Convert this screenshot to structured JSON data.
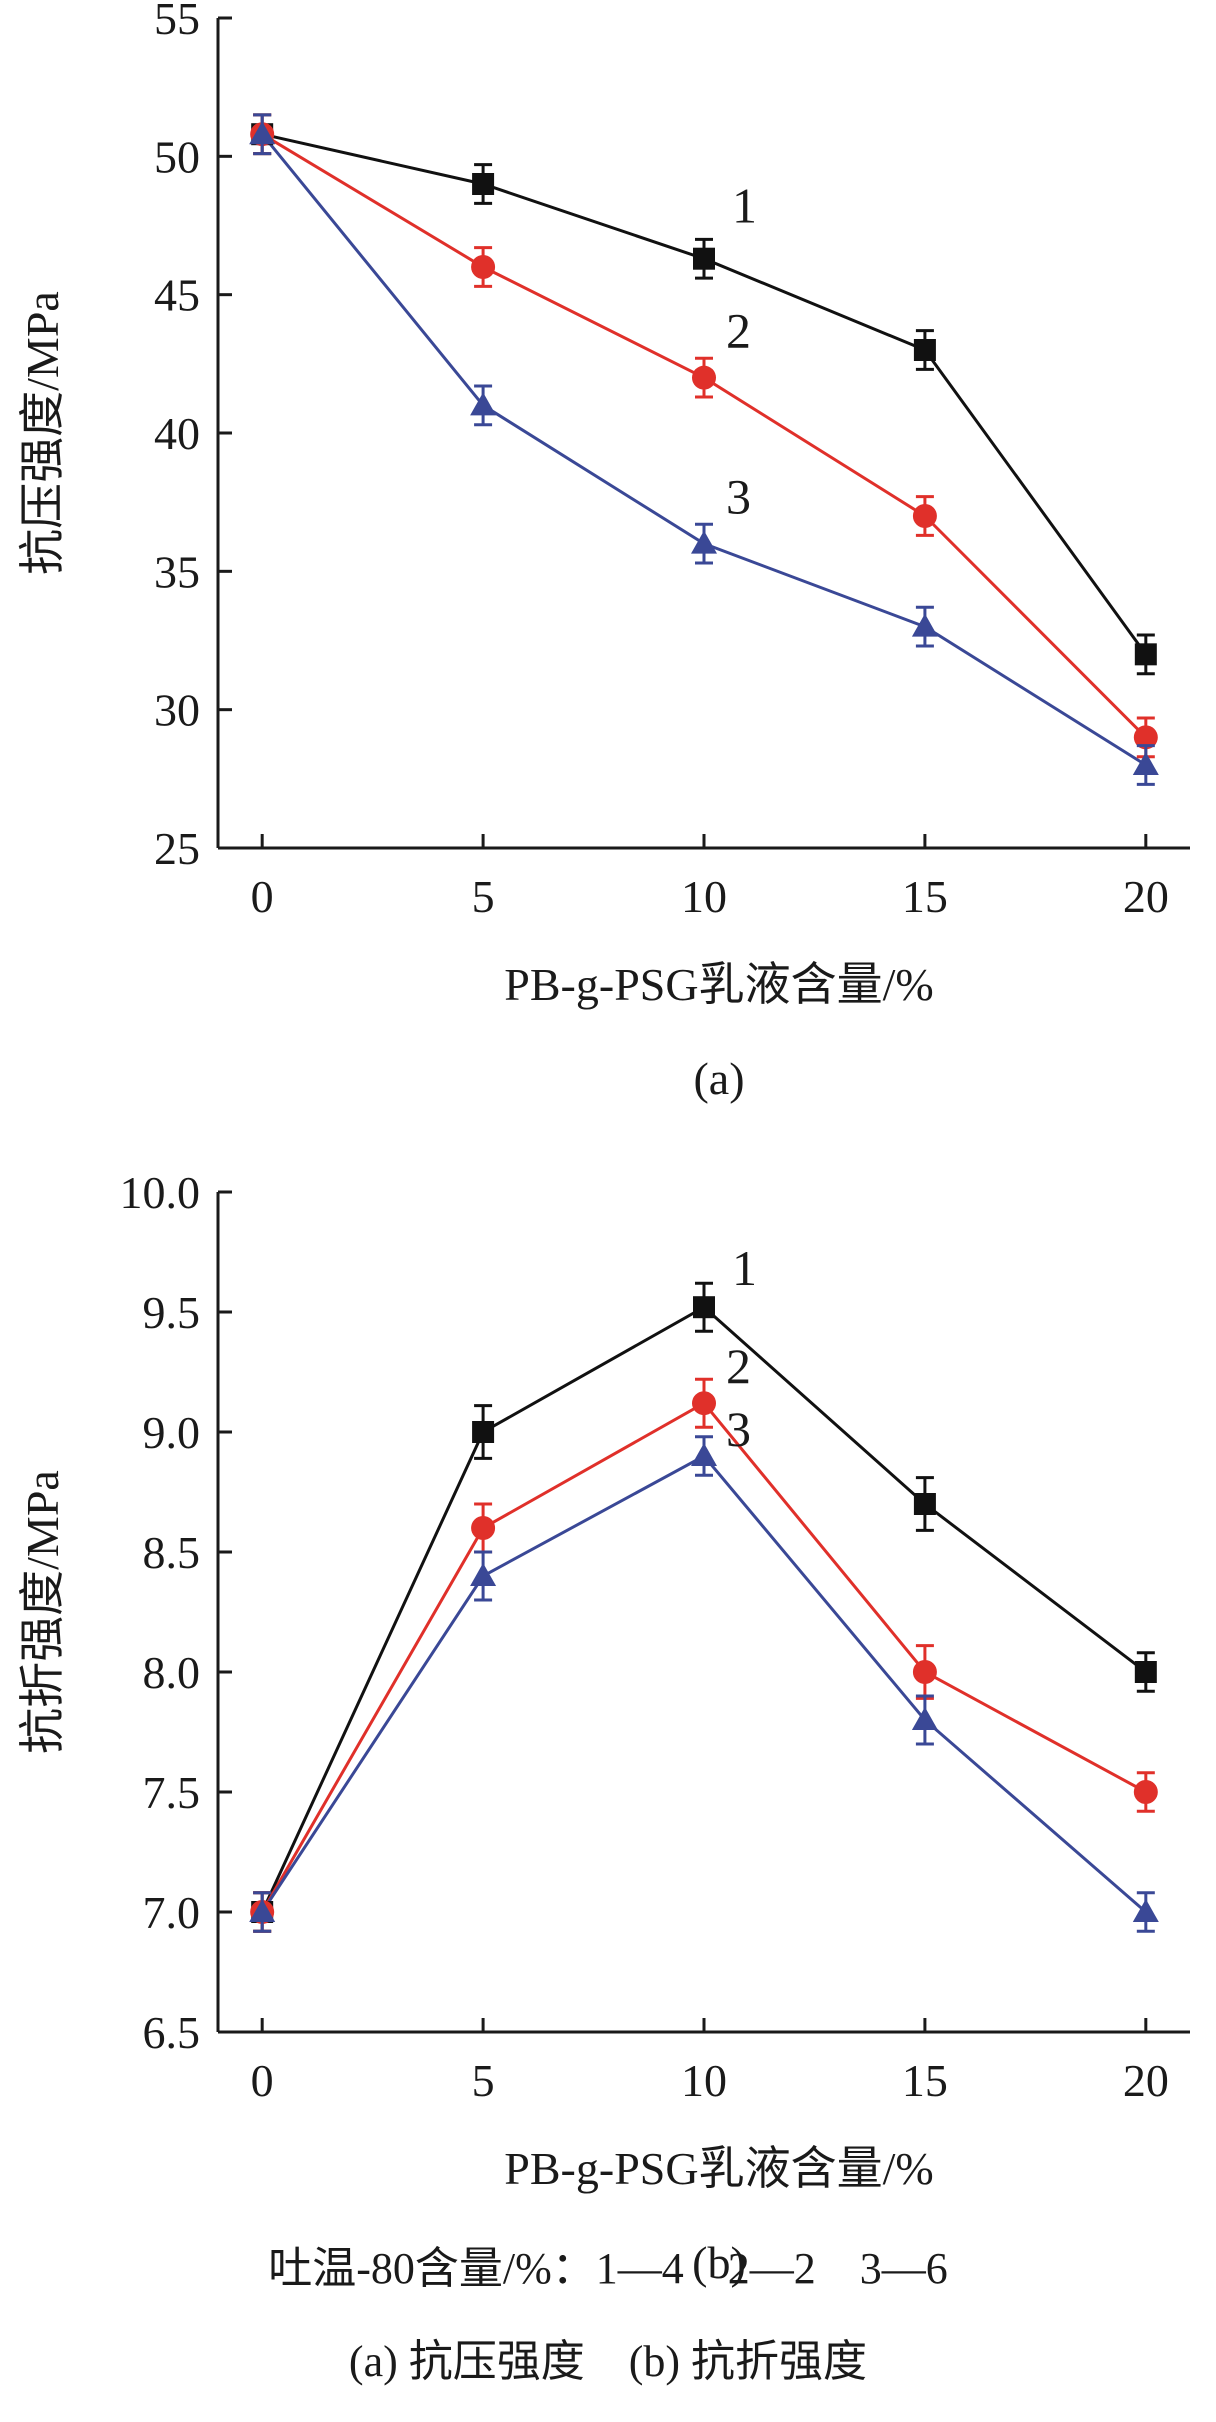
{
  "chart_data": [
    {
      "type": "line",
      "panel_label": "(a)",
      "xlabel": "PB-g-PSG乳液含量/%",
      "ylabel": "抗压强度/MPa",
      "x": [
        0,
        5,
        10,
        15,
        20
      ],
      "xticks": [
        "0",
        "5",
        "10",
        "15",
        "20"
      ],
      "ylim": [
        25,
        55
      ],
      "yticks": [
        "25",
        "30",
        "35",
        "40",
        "45",
        "50",
        "55"
      ],
      "series": [
        {
          "name": "1",
          "color": "#111111",
          "marker": "square",
          "values": [
            50.8,
            49.0,
            46.3,
            43.0,
            32.0
          ],
          "errors": [
            0.7,
            0.7,
            0.7,
            0.7,
            0.7
          ]
        },
        {
          "name": "2",
          "color": "#e0302a",
          "marker": "circle",
          "values": [
            50.8,
            46.0,
            42.0,
            37.0,
            29.0
          ],
          "errors": [
            0.7,
            0.7,
            0.7,
            0.7,
            0.7
          ]
        },
        {
          "name": "3",
          "color": "#3a4896",
          "marker": "triangle",
          "values": [
            50.8,
            41.0,
            36.0,
            33.0,
            28.0
          ],
          "errors": [
            0.7,
            0.7,
            0.7,
            0.7,
            0.7
          ]
        }
      ]
    },
    {
      "type": "line",
      "panel_label": "(b)",
      "xlabel": "PB-g-PSG乳液含量/%",
      "ylabel": "抗折强度/MPa",
      "x": [
        0,
        5,
        10,
        15,
        20
      ],
      "xticks": [
        "0",
        "5",
        "10",
        "15",
        "20"
      ],
      "ylim": [
        6.5,
        10.0
      ],
      "yticks": [
        "6.5",
        "7.0",
        "7.5",
        "8.0",
        "8.5",
        "9.0",
        "9.5",
        "10.0"
      ],
      "series": [
        {
          "name": "1",
          "color": "#111111",
          "marker": "square",
          "values": [
            7.0,
            9.0,
            9.52,
            8.7,
            8.0
          ],
          "errors": [
            0.08,
            0.11,
            0.1,
            0.11,
            0.08
          ]
        },
        {
          "name": "2",
          "color": "#e0302a",
          "marker": "circle",
          "values": [
            7.0,
            8.6,
            9.12,
            8.0,
            7.5
          ],
          "errors": [
            0.08,
            0.1,
            0.1,
            0.11,
            0.08
          ]
        },
        {
          "name": "3",
          "color": "#3a4896",
          "marker": "triangle",
          "values": [
            7.0,
            8.4,
            8.9,
            7.8,
            7.0
          ],
          "errors": [
            0.08,
            0.1,
            0.08,
            0.1,
            0.08
          ]
        }
      ]
    }
  ],
  "captions": {
    "legend_line": "吐温-80含量/%：1—4　2—2　3—6",
    "figure_caption": "(a) 抗压强度　(b) 抗折强度"
  }
}
